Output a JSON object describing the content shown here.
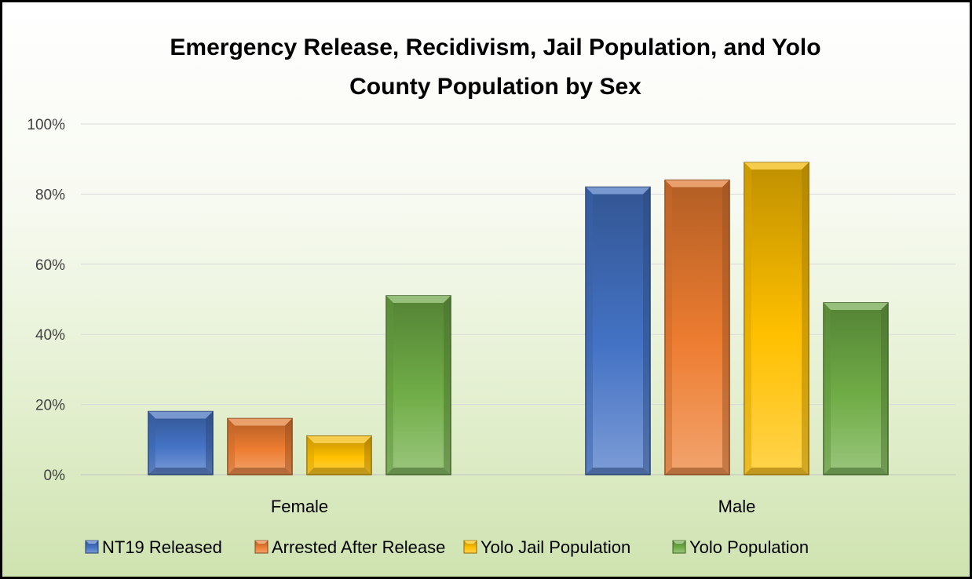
{
  "chart_data": {
    "type": "bar",
    "title": [
      "Emergency Release, Recidivism, Jail Population, and Yolo",
      "County Population by Sex"
    ],
    "categories": [
      "Female",
      "Male"
    ],
    "series": [
      {
        "name": "NT19 Released",
        "values": [
          18,
          82
        ],
        "color": "#4472c4"
      },
      {
        "name": "Arrested After Release",
        "values": [
          16,
          84
        ],
        "color": "#ed7d31"
      },
      {
        "name": "Yolo Jail Population",
        "values": [
          11,
          89
        ],
        "color": "#ffc000"
      },
      {
        "name": "Yolo Population",
        "values": [
          51,
          49
        ],
        "color": "#70ad47"
      }
    ],
    "ylim": [
      0,
      100
    ],
    "yticks": [
      "0%",
      "20%",
      "40%",
      "60%",
      "80%",
      "100%"
    ],
    "ytick_values": [
      0,
      20,
      40,
      60,
      80,
      100
    ],
    "grid": true,
    "legend_position": "bottom"
  }
}
